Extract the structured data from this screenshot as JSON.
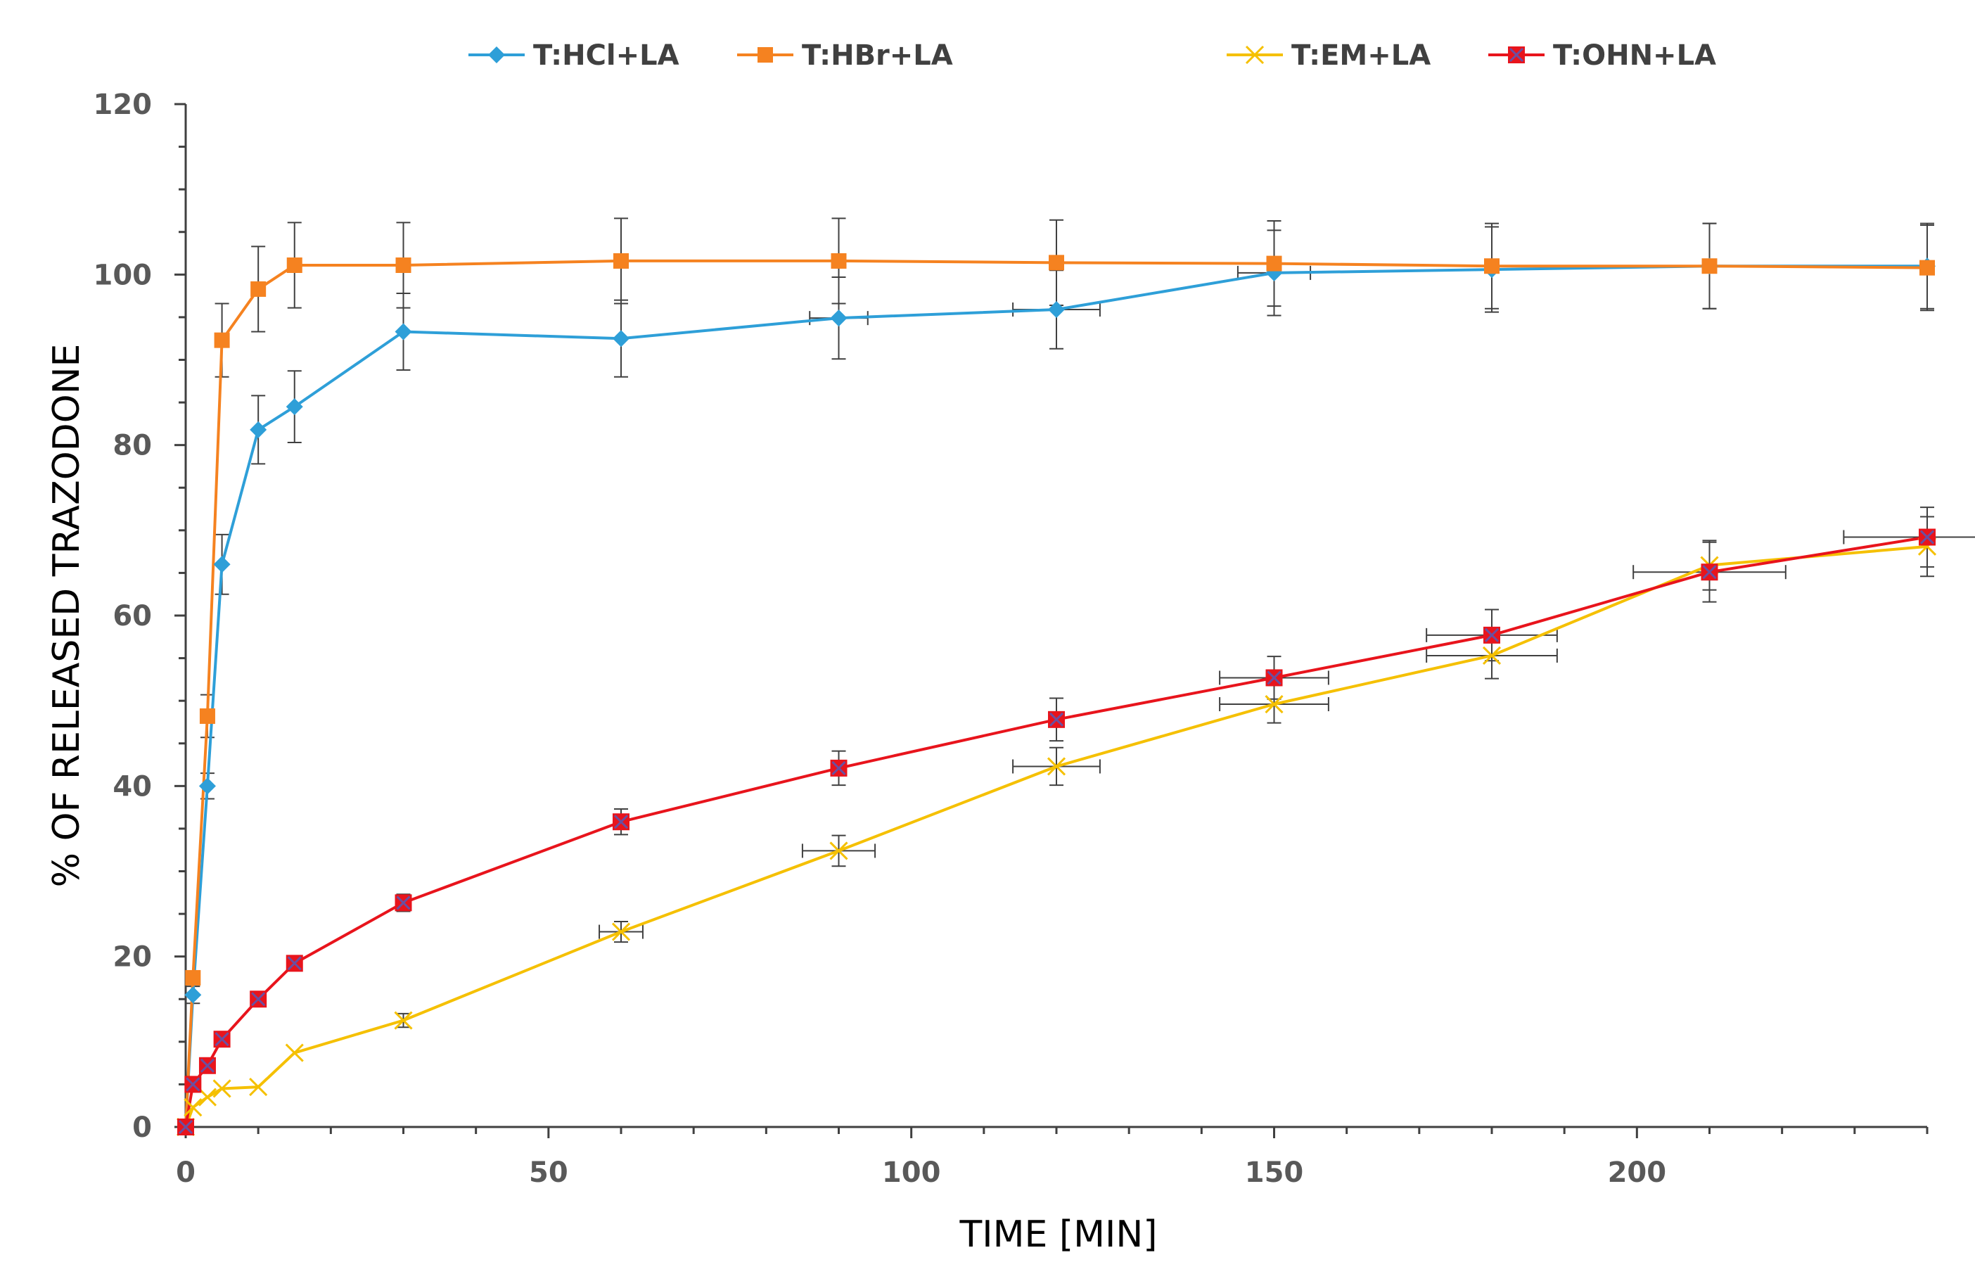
{
  "chart_data": {
    "type": "line",
    "title": "",
    "xlabel": "TIME [MIN]",
    "ylabel": "% OF RELEASED TRAZODONE",
    "xlim": [
      0,
      240
    ],
    "ylim": [
      0,
      120
    ],
    "x_ticks": [
      0,
      50,
      100,
      150,
      200
    ],
    "y_ticks": [
      0,
      20,
      40,
      60,
      80,
      100,
      120
    ],
    "grid": false,
    "legend_position": "top",
    "series": [
      {
        "name": "T:HCl+LA",
        "color": "#2E9FD8",
        "marker": "diamond",
        "x": [
          0,
          1,
          3,
          5,
          10,
          15,
          30,
          60,
          90,
          120,
          150,
          180,
          210,
          240
        ],
        "y": [
          0,
          15.5,
          40,
          66,
          81.8,
          84.5,
          93.3,
          92.5,
          94.9,
          95.9,
          100.2,
          100.6,
          101,
          101
        ],
        "y_err": [
          0,
          1,
          1.5,
          3.5,
          4,
          4.2,
          4.5,
          4.5,
          4.8,
          4.6,
          5,
          5,
          5,
          5
        ],
        "x_err": [
          0,
          0,
          0,
          0,
          0,
          0,
          0,
          0,
          4,
          6,
          5,
          0,
          0,
          0
        ]
      },
      {
        "name": "T:HBr+LA",
        "color": "#F58220",
        "marker": "square",
        "x": [
          0,
          1,
          3,
          5,
          10,
          15,
          30,
          60,
          90,
          120,
          150,
          180,
          210,
          240
        ],
        "y": [
          0,
          17.5,
          48.2,
          92.3,
          98.3,
          101.1,
          101.1,
          101.6,
          101.6,
          101.4,
          101.3,
          101,
          101,
          100.8
        ],
        "y_err": [
          0,
          0,
          2.5,
          4.3,
          5,
          5,
          5,
          5,
          5,
          5,
          5,
          5,
          5,
          5
        ],
        "x_err": [
          0,
          0,
          0,
          0,
          0,
          0,
          0,
          0,
          0,
          0,
          0,
          0,
          0,
          0
        ]
      },
      {
        "name": "T:EM+LA",
        "color": "#F5C000",
        "marker": "x",
        "x": [
          0,
          1,
          3,
          5,
          10,
          15,
          30,
          60,
          90,
          120,
          150,
          180,
          210,
          240
        ],
        "y": [
          0,
          2.3,
          3.5,
          4.5,
          4.7,
          8.7,
          12.5,
          22.9,
          32.4,
          42.3,
          49.6,
          55.3,
          65.9,
          68.1
        ],
        "y_err": [
          0,
          0,
          0,
          0,
          0,
          0,
          0.8,
          1.2,
          1.8,
          2.2,
          2.2,
          2.7,
          2.9,
          3.5
        ],
        "x_err": [
          0,
          0,
          0,
          0,
          0,
          0,
          0,
          3,
          5,
          6,
          7.5,
          9,
          0,
          0
        ]
      },
      {
        "name": "T:OHN+LA",
        "color": "#E8141C",
        "marker": "square-x",
        "x": [
          0,
          1,
          3,
          5,
          10,
          15,
          30,
          60,
          90,
          120,
          150,
          180,
          210,
          240
        ],
        "y": [
          0,
          5,
          7.2,
          10.3,
          15,
          19.2,
          26.3,
          35.8,
          42.1,
          47.8,
          52.7,
          57.7,
          65.1,
          69.2
        ],
        "y_err": [
          0,
          0,
          0,
          0,
          0,
          0,
          1,
          1.5,
          2,
          2.5,
          2.5,
          3,
          3.5,
          3.5
        ],
        "x_err": [
          0,
          0,
          0,
          0,
          0,
          0,
          0,
          0,
          0,
          0,
          7.5,
          9,
          10.5,
          11.5
        ]
      }
    ]
  }
}
